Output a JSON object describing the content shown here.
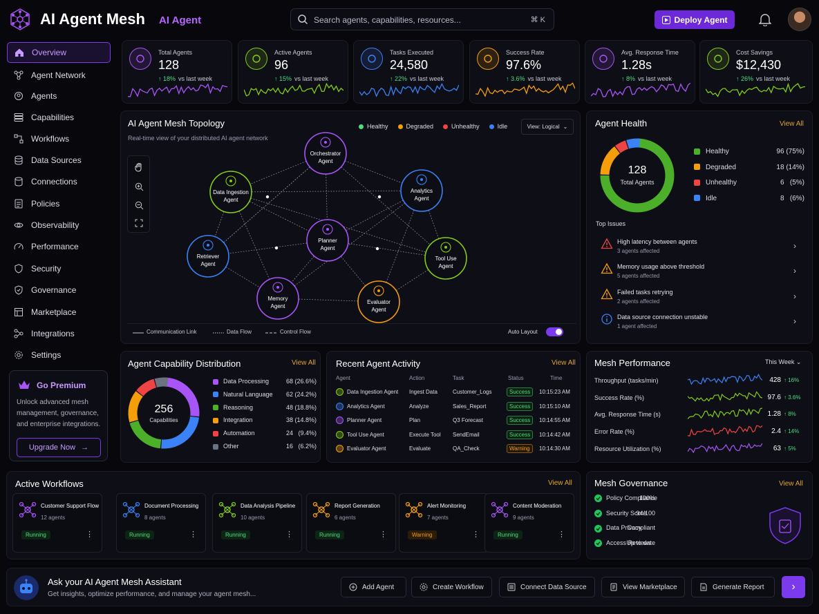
{
  "header": {
    "title": "AI Agent Mesh",
    "subtitle": "AI Agent",
    "search_placeholder": "Search agents, capabilities, resources...",
    "search_shortcut": "⌘ K",
    "deploy_label": "Deploy Agent",
    "accent": "#6d28d9"
  },
  "sidebar": {
    "items": [
      {
        "label": "Overview",
        "icon": "home-icon"
      },
      {
        "label": "Agent Network",
        "icon": "network-icon"
      },
      {
        "label": "Agents",
        "icon": "agents-icon"
      },
      {
        "label": "Capabilities",
        "icon": "stack-icon"
      },
      {
        "label": "Workflows",
        "icon": "workflow-icon"
      },
      {
        "label": "Data Sources",
        "icon": "database-icon"
      },
      {
        "label": "Connections",
        "icon": "link-icon"
      },
      {
        "label": "Policies",
        "icon": "policy-icon"
      },
      {
        "label": "Observability",
        "icon": "eye-icon"
      },
      {
        "label": "Performance",
        "icon": "gauge-icon"
      },
      {
        "label": "Security",
        "icon": "shield-icon"
      },
      {
        "label": "Governance",
        "icon": "scale-icon"
      },
      {
        "label": "Marketplace",
        "icon": "store-icon"
      },
      {
        "label": "Integrations",
        "icon": "plug-icon"
      },
      {
        "label": "Settings",
        "icon": "gear-icon"
      }
    ],
    "premium": {
      "title": "Go Premium",
      "desc": "Unlock advanced mesh management, governance, and enterprise integrations.",
      "button": "Upgrade Now"
    }
  },
  "kpis": [
    {
      "label": "Total Agents",
      "value": "128",
      "delta": "18%",
      "suffix": "vs last week",
      "color": "#a855f7"
    },
    {
      "label": "Active Agents",
      "value": "96",
      "delta": "15%",
      "suffix": "vs last week",
      "color": "#84cc16"
    },
    {
      "label": "Tasks Executed",
      "value": "24,580",
      "delta": "22%",
      "suffix": "vs last week",
      "color": "#3b82f6"
    },
    {
      "label": "Success Rate",
      "value": "97.6%",
      "delta": "3.6%",
      "suffix": "vs last week",
      "color": "#f59e0b"
    },
    {
      "label": "Avg. Response Time",
      "value": "1.28s",
      "delta": "8%",
      "suffix": "vs last week",
      "color": "#a855f7"
    },
    {
      "label": "Cost Savings",
      "value": "$12,430",
      "delta": "26%",
      "suffix": "vs last week",
      "color": "#84cc16"
    }
  ],
  "topology": {
    "title": "AI Agent Mesh Topology",
    "subtitle": "Real-time view of your distributed AI agent network",
    "legend": [
      {
        "label": "Healthy",
        "color": "#4ade80"
      },
      {
        "label": "Degraded",
        "color": "#f59e0b"
      },
      {
        "label": "Unhealthy",
        "color": "#ef4444"
      },
      {
        "label": "Idle",
        "color": "#3b82f6"
      }
    ],
    "view_select": "View: Logical",
    "nodes": [
      {
        "line1": "Orchestrator",
        "line2": "Agent",
        "color": "#a855f7"
      },
      {
        "line1": "Data Ingestion",
        "line2": "Agent",
        "color": "#84cc16"
      },
      {
        "line1": "Analytics",
        "line2": "Agent",
        "color": "#3b82f6"
      },
      {
        "line1": "Planner",
        "line2": "Agent",
        "color": "#a855f7"
      },
      {
        "line1": "Retriever",
        "line2": "Agent",
        "color": "#3b82f6"
      },
      {
        "line1": "Tool Use",
        "line2": "Agent",
        "color": "#84cc16"
      },
      {
        "line1": "Memory",
        "line2": "Agent",
        "color": "#a855f7"
      },
      {
        "line1": "Evaluator",
        "line2": "Agent",
        "color": "#f59e0b"
      }
    ],
    "link_legend": [
      "Communication Link",
      "Data Flow",
      "Control Flow"
    ],
    "auto_layout": "Auto Layout"
  },
  "health": {
    "title": "Agent Health",
    "view_all": "View All",
    "total": "128",
    "total_label": "Total Agents",
    "rows": [
      {
        "label": "Healthy",
        "value": "96 (75%)",
        "pct": 75,
        "color": "#4caf2a"
      },
      {
        "label": "Degraded",
        "value": "18 (14%)",
        "pct": 14,
        "color": "#f59e0b"
      },
      {
        "label": "Unhealthy",
        "value": "6   (5%)",
        "pct": 5,
        "color": "#ef4444"
      },
      {
        "label": "Idle",
        "value": "8   (6%)",
        "pct": 6,
        "color": "#3b82f6"
      }
    ],
    "issues_title": "Top Issues",
    "issues": [
      {
        "title": "High latency between agents",
        "sub": "3 agents affected",
        "color": "#ef4444"
      },
      {
        "title": "Memory usage above threshold",
        "sub": "5 agents affected",
        "color": "#f59e0b"
      },
      {
        "title": "Failed tasks retrying",
        "sub": "2 agents affected",
        "color": "#f59e0b"
      },
      {
        "title": "Data source connection unstable",
        "sub": "1 agent affected",
        "color": "#3b82f6"
      }
    ]
  },
  "capability": {
    "title": "Agent Capability Distribution",
    "view_all": "View All",
    "total": "256",
    "total_label": "Capabilities",
    "rows": [
      {
        "label": "Data Processing",
        "value": "68 (26.6%)",
        "pct": 26.6,
        "color": "#a855f7"
      },
      {
        "label": "Natural Language",
        "value": "62 (24.2%)",
        "pct": 24.2,
        "color": "#3b82f6"
      },
      {
        "label": "Reasoning",
        "value": "48 (18.8%)",
        "pct": 18.8,
        "color": "#4caf2a"
      },
      {
        "label": "Integration",
        "value": "38 (14.8%)",
        "pct": 14.8,
        "color": "#f59e0b"
      },
      {
        "label": "Automation",
        "value": "24   (9.4%)",
        "pct": 9.4,
        "color": "#ef4444"
      },
      {
        "label": "Other",
        "value": "16   (6.2%)",
        "pct": 6.2,
        "color": "#6b7280"
      }
    ]
  },
  "activity": {
    "title": "Recent Agent Activity",
    "view_all": "View All",
    "headers": [
      "Agent",
      "Action",
      "Task",
      "Status",
      "Time"
    ],
    "rows": [
      {
        "agent": "Data Ingestion Agent",
        "action": "Ingest Data",
        "task": "Customer_Logs",
        "status": "Success",
        "time": "10:15:23 AM",
        "color": "#84cc16"
      },
      {
        "agent": "Analytics Agent",
        "action": "Analyze",
        "task": "Sales_Report",
        "status": "Success",
        "time": "10:15:10 AM",
        "color": "#3b82f6"
      },
      {
        "agent": "Planner Agent",
        "action": "Plan",
        "task": "Q3 Forecast",
        "status": "Success",
        "time": "10:14:55 AM",
        "color": "#a855f7"
      },
      {
        "agent": "Tool Use Agent",
        "action": "Execute Tool",
        "task": "SendEmail",
        "status": "Success",
        "time": "10:14:42 AM",
        "color": "#84cc16"
      },
      {
        "agent": "Evaluator Agent",
        "action": "Evaluate",
        "task": "QA_Check",
        "status": "Warning",
        "time": "10:14:30 AM",
        "color": "#f59e0b"
      }
    ]
  },
  "performance": {
    "title": "Mesh Performance",
    "range": "This Week",
    "rows": [
      {
        "label": "Throughput (tasks/min)",
        "value": "428",
        "delta": "16%",
        "color": "#3b82f6"
      },
      {
        "label": "Success Rate (%)",
        "value": "97.6",
        "delta": "3.6%",
        "color": "#84cc16"
      },
      {
        "label": "Avg. Response Time (s)",
        "value": "1.28",
        "delta": "8%",
        "color": "#84cc16"
      },
      {
        "label": "Error Rate (%)",
        "value": "2.4",
        "delta": "14%",
        "color": "#ef4444"
      },
      {
        "label": "Resource Utilization (%)",
        "value": "63",
        "delta": "5%",
        "color": "#a855f7"
      }
    ]
  },
  "workflows": {
    "title": "Active Workflows",
    "view_all": "View All",
    "items": [
      {
        "name": "Customer Support Flow",
        "count": "12 agents",
        "status": "Running",
        "color": "#a855f7"
      },
      {
        "name": "Document Processing",
        "count": "8 agents",
        "status": "Running",
        "color": "#3b82f6"
      },
      {
        "name": "Data Analysis Pipeline",
        "count": "10 agents",
        "status": "Running",
        "color": "#84cc16"
      },
      {
        "name": "Report Generation",
        "count": "6 agents",
        "status": "Running",
        "color": "#f59e0b"
      },
      {
        "name": "Alert Monitoring",
        "count": "7 agents",
        "status": "Warning",
        "color": "#f59e0b"
      },
      {
        "name": "Content Moderation",
        "count": "9 agents",
        "status": "Running",
        "color": "#a855f7"
      }
    ]
  },
  "governance": {
    "title": "Mesh Governance",
    "view_all": "View All",
    "rows": [
      {
        "label": "Policy Compliance",
        "value": "100%"
      },
      {
        "label": "Security Score",
        "value": "94/100"
      },
      {
        "label": "Data Privacy",
        "value": "Compliant"
      },
      {
        "label": "Access Reviews",
        "value": "Up to date"
      }
    ]
  },
  "assistant": {
    "title": "Ask your AI Agent Mesh Assistant",
    "subtitle": "Get insights, optimize performance, and manage your agent mesh...",
    "actions": [
      "Add Agent",
      "Create Workflow",
      "Connect Data Source",
      "View Marketplace",
      "Generate Report"
    ]
  }
}
